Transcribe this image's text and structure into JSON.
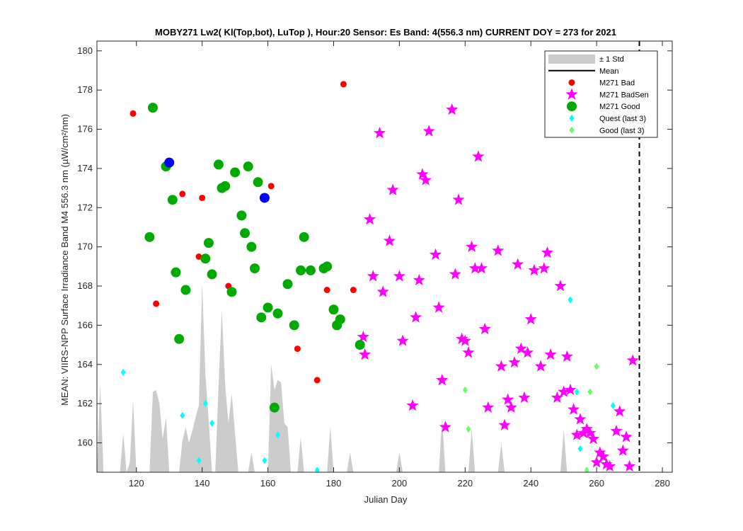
{
  "chart_data": {
    "type": "scatter",
    "title": "MOBY271   Lw2( Kl(Top,bot), LuTop ),   Hour:20 Sensor: Es Band: 4(556.3 nm)   CURRENT DOY = 273 for 2021",
    "xlabel": "Julian Day",
    "ylabel": "MEAN: VIIRS-NPP Surface Irradiance Band M4 556.3 nm (µW/cm²/nm)",
    "xlim": [
      108,
      283
    ],
    "ylim": [
      158.5,
      180.5
    ],
    "xticks": [
      120,
      140,
      160,
      180,
      200,
      220,
      240,
      260,
      280
    ],
    "yticks": [
      160,
      162,
      164,
      166,
      168,
      170,
      172,
      174,
      176,
      178,
      180
    ],
    "grid": false,
    "legend_position": "top-right",
    "current_doy": 273,
    "colors": {
      "std_fill": "#cccccc",
      "mean": "#000000",
      "bad": "#ff0000",
      "badsen": "#ff00ff",
      "good": "#00aa00",
      "blue": "#0000ff",
      "quest": "#00ffff",
      "good_last3": "#66ff66"
    },
    "legend": [
      {
        "label": "± 1 Std",
        "marker": "band",
        "color": "#cccccc"
      },
      {
        "label": "Mean",
        "marker": "line",
        "color": "#000000"
      },
      {
        "label": "M271 Bad",
        "marker": "dot",
        "color": "#ff0000"
      },
      {
        "label": "M271 BadSen",
        "marker": "star",
        "color": "#ff00ff"
      },
      {
        "label": "M271 Good",
        "marker": "dot-large",
        "color": "#00aa00"
      },
      {
        "label": "Quest (last 3)",
        "marker": "diamond",
        "color": "#00ffff"
      },
      {
        "label": "Good (last 3)",
        "marker": "diamond",
        "color": "#66ff66"
      }
    ],
    "std_band": [
      [
        108,
        158.5
      ],
      [
        109,
        163
      ],
      [
        110,
        158.5
      ],
      [
        115,
        158.5
      ],
      [
        116,
        160.5
      ],
      [
        117,
        158.5
      ],
      [
        118,
        159
      ],
      [
        119,
        162.2
      ],
      [
        120,
        158.5
      ],
      [
        124,
        158.5
      ],
      [
        125,
        162.6
      ],
      [
        126,
        162.7
      ],
      [
        127,
        162
      ],
      [
        128,
        160.2
      ],
      [
        129,
        161.3
      ],
      [
        130,
        158.5
      ],
      [
        133,
        158.5
      ],
      [
        134,
        160.1
      ],
      [
        135,
        160.8
      ],
      [
        136,
        160
      ],
      [
        137,
        160.6
      ],
      [
        138,
        161.3
      ],
      [
        139,
        161.9
      ],
      [
        140,
        168.1
      ],
      [
        141,
        163.5
      ],
      [
        142,
        161.1
      ],
      [
        143,
        158.5
      ],
      [
        144,
        158.5
      ],
      [
        145,
        163
      ],
      [
        146,
        166.8
      ],
      [
        147,
        163
      ],
      [
        148,
        161
      ],
      [
        149,
        162.5
      ],
      [
        150,
        160.5
      ],
      [
        151,
        158.5
      ],
      [
        154,
        158.5
      ],
      [
        155,
        159.5
      ],
      [
        156,
        158.5
      ],
      [
        160,
        158.5
      ],
      [
        161,
        164
      ],
      [
        162,
        162.7
      ],
      [
        163,
        163.2
      ],
      [
        164,
        163.1
      ],
      [
        165,
        161
      ],
      [
        166,
        160.8
      ],
      [
        167,
        158.5
      ],
      [
        169,
        158.5
      ],
      [
        170,
        160.3
      ],
      [
        171,
        158.5
      ],
      [
        178,
        158.5
      ],
      [
        179,
        160.8
      ],
      [
        180,
        158.5
      ],
      [
        184,
        158.5
      ],
      [
        185,
        159.5
      ],
      [
        186,
        158.5
      ],
      [
        199,
        158.5
      ],
      [
        200,
        159.5
      ],
      [
        201,
        158.5
      ],
      [
        212,
        158.5
      ],
      [
        213,
        161.3
      ],
      [
        214,
        158.5
      ],
      [
        221,
        158.5
      ],
      [
        222,
        160.7
      ],
      [
        223,
        158.5
      ],
      [
        230,
        158.5
      ],
      [
        231,
        160
      ],
      [
        232,
        158.5
      ],
      [
        249,
        158.5
      ],
      [
        250,
        160.7
      ],
      [
        251,
        158.5
      ],
      [
        283,
        158.5
      ]
    ],
    "series": [
      {
        "name": "M271 Bad",
        "marker": "dot",
        "color": "#ff0000",
        "points": [
          [
            119,
            176.8
          ],
          [
            126,
            167.1
          ],
          [
            134,
            172.7
          ],
          [
            139,
            169.5
          ],
          [
            140,
            172.5
          ],
          [
            148,
            168
          ],
          [
            161,
            173.1
          ],
          [
            169,
            164.8
          ],
          [
            175,
            163.2
          ],
          [
            178,
            167.8
          ],
          [
            183,
            178.3
          ],
          [
            186,
            167.8
          ]
        ]
      },
      {
        "name": "M271 BadSen",
        "marker": "star",
        "color": "#ff00ff",
        "points": [
          [
            189,
            165.4
          ],
          [
            189.5,
            164.5
          ],
          [
            191,
            171.4
          ],
          [
            192,
            168.5
          ],
          [
            194,
            175.8
          ],
          [
            195,
            167.7
          ],
          [
            197,
            170.3
          ],
          [
            198,
            172.9
          ],
          [
            200,
            168.5
          ],
          [
            201,
            165.2
          ],
          [
            204,
            161.9
          ],
          [
            205,
            166.4
          ],
          [
            206,
            168.3
          ],
          [
            207,
            173.7
          ],
          [
            208,
            173.4
          ],
          [
            209,
            175.9
          ],
          [
            211,
            169.6
          ],
          [
            212,
            166.9
          ],
          [
            213,
            163.2
          ],
          [
            214,
            160.8
          ],
          [
            216,
            177
          ],
          [
            217,
            168.6
          ],
          [
            218,
            172.4
          ],
          [
            219,
            165.3
          ],
          [
            220,
            165.2
          ],
          [
            221,
            164.6
          ],
          [
            222,
            170
          ],
          [
            223,
            168.9
          ],
          [
            224,
            174.6
          ],
          [
            225,
            168.9
          ],
          [
            226,
            165.8
          ],
          [
            227,
            161.8
          ],
          [
            230,
            169.8
          ],
          [
            231,
            163.9
          ],
          [
            232,
            160.9
          ],
          [
            233,
            162.2
          ],
          [
            234,
            161.8
          ],
          [
            235,
            164.1
          ],
          [
            236,
            169.1
          ],
          [
            237,
            164.8
          ],
          [
            238,
            162.3
          ],
          [
            239,
            164.6
          ],
          [
            240,
            166.3
          ],
          [
            241,
            168.8
          ],
          [
            243,
            163.9
          ],
          [
            244,
            168.9
          ],
          [
            245,
            169.7
          ],
          [
            246,
            164.5
          ],
          [
            248,
            162.3
          ],
          [
            249,
            168
          ],
          [
            250,
            162.6
          ],
          [
            251,
            164.4
          ],
          [
            252,
            162.7
          ],
          [
            253,
            161.7
          ],
          [
            254,
            160.4
          ],
          [
            255,
            161.2
          ],
          [
            256,
            160.5
          ],
          [
            257,
            160.7
          ],
          [
            258,
            160.5
          ],
          [
            259,
            160.2
          ],
          [
            260,
            159
          ],
          [
            261,
            159.5
          ],
          [
            262,
            159.3
          ],
          [
            263,
            158.9
          ],
          [
            264,
            158.8
          ],
          [
            266,
            160.6
          ],
          [
            267,
            161.6
          ],
          [
            268,
            159.6
          ],
          [
            269,
            160.3
          ],
          [
            270,
            158.8
          ],
          [
            271,
            164.2
          ]
        ]
      },
      {
        "name": "M271 Good",
        "marker": "dot-large",
        "color": "#00aa00",
        "points": [
          [
            124,
            170.5
          ],
          [
            125,
            177.1
          ],
          [
            129,
            174.1
          ],
          [
            131,
            172.4
          ],
          [
            132,
            168.7
          ],
          [
            133,
            165.3
          ],
          [
            135,
            167.8
          ],
          [
            141,
            169.4
          ],
          [
            142,
            170.2
          ],
          [
            143,
            168.6
          ],
          [
            145,
            174.2
          ],
          [
            146,
            173
          ],
          [
            147,
            173.1
          ],
          [
            149,
            167.7
          ],
          [
            150,
            173.8
          ],
          [
            152,
            171.6
          ],
          [
            153,
            170.7
          ],
          [
            154,
            174.1
          ],
          [
            155,
            170
          ],
          [
            156,
            168.9
          ],
          [
            157,
            173.3
          ],
          [
            158,
            166.4
          ],
          [
            160,
            166.9
          ],
          [
            162,
            161.8
          ],
          [
            163,
            166.6
          ],
          [
            166,
            168.1
          ],
          [
            168,
            166
          ],
          [
            170,
            168.8
          ],
          [
            171,
            170.5
          ],
          [
            173,
            168.8
          ],
          [
            177,
            168.9
          ],
          [
            178,
            169
          ],
          [
            180,
            166.8
          ],
          [
            181,
            166
          ],
          [
            182,
            166.3
          ],
          [
            188,
            165
          ]
        ]
      },
      {
        "name": "Blue",
        "marker": "dot-large",
        "color": "#0000ff",
        "points": [
          [
            130,
            174.3
          ],
          [
            159,
            172.5
          ]
        ]
      },
      {
        "name": "Quest (last 3)",
        "marker": "diamond",
        "color": "#00ffff",
        "points": [
          [
            116,
            163.6
          ],
          [
            134,
            161.4
          ],
          [
            139,
            159.1
          ],
          [
            141,
            162
          ],
          [
            143,
            161
          ],
          [
            159,
            159.1
          ],
          [
            163,
            160.4
          ],
          [
            175,
            158.6
          ],
          [
            252,
            167.3
          ],
          [
            254,
            162.6
          ],
          [
            255,
            159.7
          ],
          [
            265,
            161.9
          ]
        ]
      },
      {
        "name": "Good (last 3)",
        "marker": "diamond",
        "color": "#66ff66",
        "points": [
          [
            220,
            162.7
          ],
          [
            221,
            160.7
          ],
          [
            257,
            158.6
          ],
          [
            258,
            162.6
          ],
          [
            260,
            163.9
          ]
        ]
      }
    ]
  }
}
